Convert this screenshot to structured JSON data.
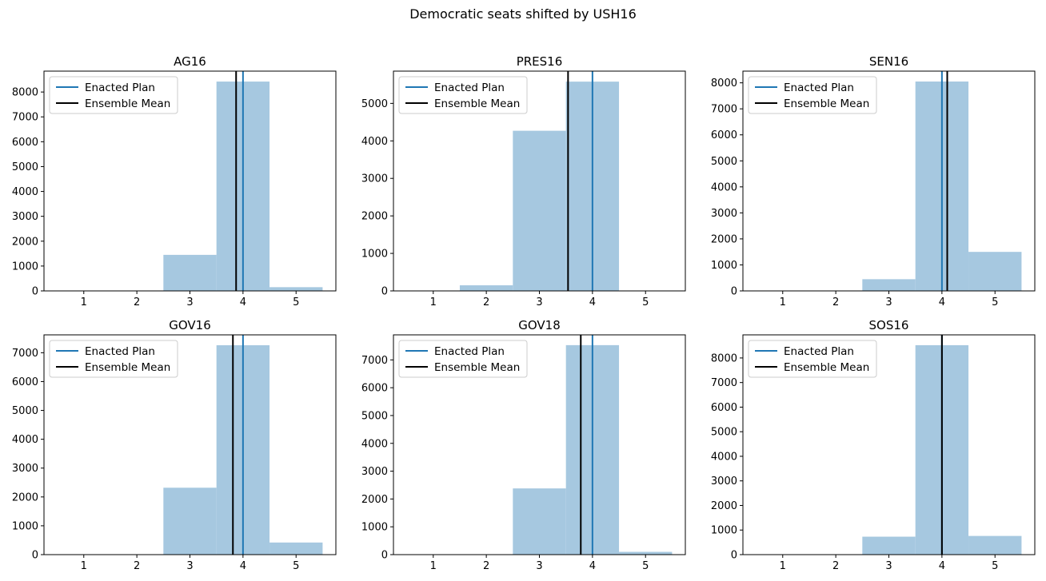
{
  "figure": {
    "suptitle": "Democratic seats shifted by USH16"
  },
  "colors": {
    "bar": "#a6c8e0",
    "enacted": "#1f77b4",
    "mean": "#000000"
  },
  "chart_data": [
    {
      "type": "bar",
      "title": "AG16",
      "bins": [
        [
          0.5,
          1.5
        ],
        [
          1.5,
          2.5
        ],
        [
          2.5,
          3.5
        ],
        [
          3.5,
          4.5
        ],
        [
          4.5,
          5.5
        ]
      ],
      "values": [
        0,
        0,
        1450,
        8420,
        150
      ],
      "enacted": 4,
      "ensemble_mean": 3.87,
      "xticks": [
        1,
        2,
        3,
        4,
        5
      ],
      "yticks": [
        0,
        1000,
        2000,
        3000,
        4000,
        5000,
        6000,
        7000,
        8000
      ],
      "xlim": [
        0.25,
        5.75
      ],
      "ylim": [
        0,
        8840
      ],
      "legend": [
        "Enacted Plan",
        "Ensemble Mean"
      ]
    },
    {
      "type": "bar",
      "title": "PRES16",
      "bins": [
        [
          0.5,
          1.5
        ],
        [
          1.5,
          2.5
        ],
        [
          2.5,
          3.5
        ],
        [
          3.5,
          4.5
        ],
        [
          4.5,
          5.5
        ]
      ],
      "values": [
        0,
        150,
        4270,
        5580,
        0
      ],
      "enacted": 4,
      "ensemble_mean": 3.54,
      "xticks": [
        1,
        2,
        3,
        4,
        5
      ],
      "yticks": [
        0,
        1000,
        2000,
        3000,
        4000,
        5000
      ],
      "xlim": [
        0.25,
        5.75
      ],
      "ylim": [
        0,
        5860
      ],
      "legend": [
        "Enacted Plan",
        "Ensemble Mean"
      ]
    },
    {
      "type": "bar",
      "title": "SEN16",
      "bins": [
        [
          0.5,
          1.5
        ],
        [
          1.5,
          2.5
        ],
        [
          2.5,
          3.5
        ],
        [
          3.5,
          4.5
        ],
        [
          4.5,
          5.5
        ]
      ],
      "values": [
        0,
        0,
        450,
        8050,
        1500
      ],
      "enacted": 4,
      "ensemble_mean": 4.1,
      "xticks": [
        1,
        2,
        3,
        4,
        5
      ],
      "yticks": [
        0,
        1000,
        2000,
        3000,
        4000,
        5000,
        6000,
        7000,
        8000
      ],
      "xlim": [
        0.25,
        5.75
      ],
      "ylim": [
        0,
        8450
      ],
      "legend": [
        "Enacted Plan",
        "Ensemble Mean"
      ]
    },
    {
      "type": "bar",
      "title": "GOV16",
      "bins": [
        [
          0.5,
          1.5
        ],
        [
          1.5,
          2.5
        ],
        [
          2.5,
          3.5
        ],
        [
          3.5,
          4.5
        ],
        [
          4.5,
          5.5
        ]
      ],
      "values": [
        0,
        0,
        2320,
        7260,
        420
      ],
      "enacted": 4,
      "ensemble_mean": 3.81,
      "xticks": [
        1,
        2,
        3,
        4,
        5
      ],
      "yticks": [
        0,
        1000,
        2000,
        3000,
        4000,
        5000,
        6000,
        7000
      ],
      "xlim": [
        0.25,
        5.75
      ],
      "ylim": [
        0,
        7620
      ],
      "legend": [
        "Enacted Plan",
        "Ensemble Mean"
      ]
    },
    {
      "type": "bar",
      "title": "GOV18",
      "bins": [
        [
          0.5,
          1.5
        ],
        [
          1.5,
          2.5
        ],
        [
          2.5,
          3.5
        ],
        [
          3.5,
          4.5
        ],
        [
          4.5,
          5.5
        ]
      ],
      "values": [
        0,
        0,
        2380,
        7530,
        100
      ],
      "enacted": 4,
      "ensemble_mean": 3.78,
      "xticks": [
        1,
        2,
        3,
        4,
        5
      ],
      "yticks": [
        0,
        1000,
        2000,
        3000,
        4000,
        5000,
        6000,
        7000
      ],
      "xlim": [
        0.25,
        5.75
      ],
      "ylim": [
        0,
        7900
      ],
      "legend": [
        "Enacted Plan",
        "Ensemble Mean"
      ]
    },
    {
      "type": "bar",
      "title": "SOS16",
      "bins": [
        [
          0.5,
          1.5
        ],
        [
          1.5,
          2.5
        ],
        [
          2.5,
          3.5
        ],
        [
          3.5,
          4.5
        ],
        [
          4.5,
          5.5
        ]
      ],
      "values": [
        0,
        0,
        730,
        8520,
        760
      ],
      "enacted": 4,
      "ensemble_mean": 4.0,
      "xticks": [
        1,
        2,
        3,
        4,
        5
      ],
      "yticks": [
        0,
        1000,
        2000,
        3000,
        4000,
        5000,
        6000,
        7000,
        8000
      ],
      "xlim": [
        0.25,
        5.75
      ],
      "ylim": [
        0,
        8940
      ],
      "legend": [
        "Enacted Plan",
        "Ensemble Mean"
      ]
    }
  ]
}
